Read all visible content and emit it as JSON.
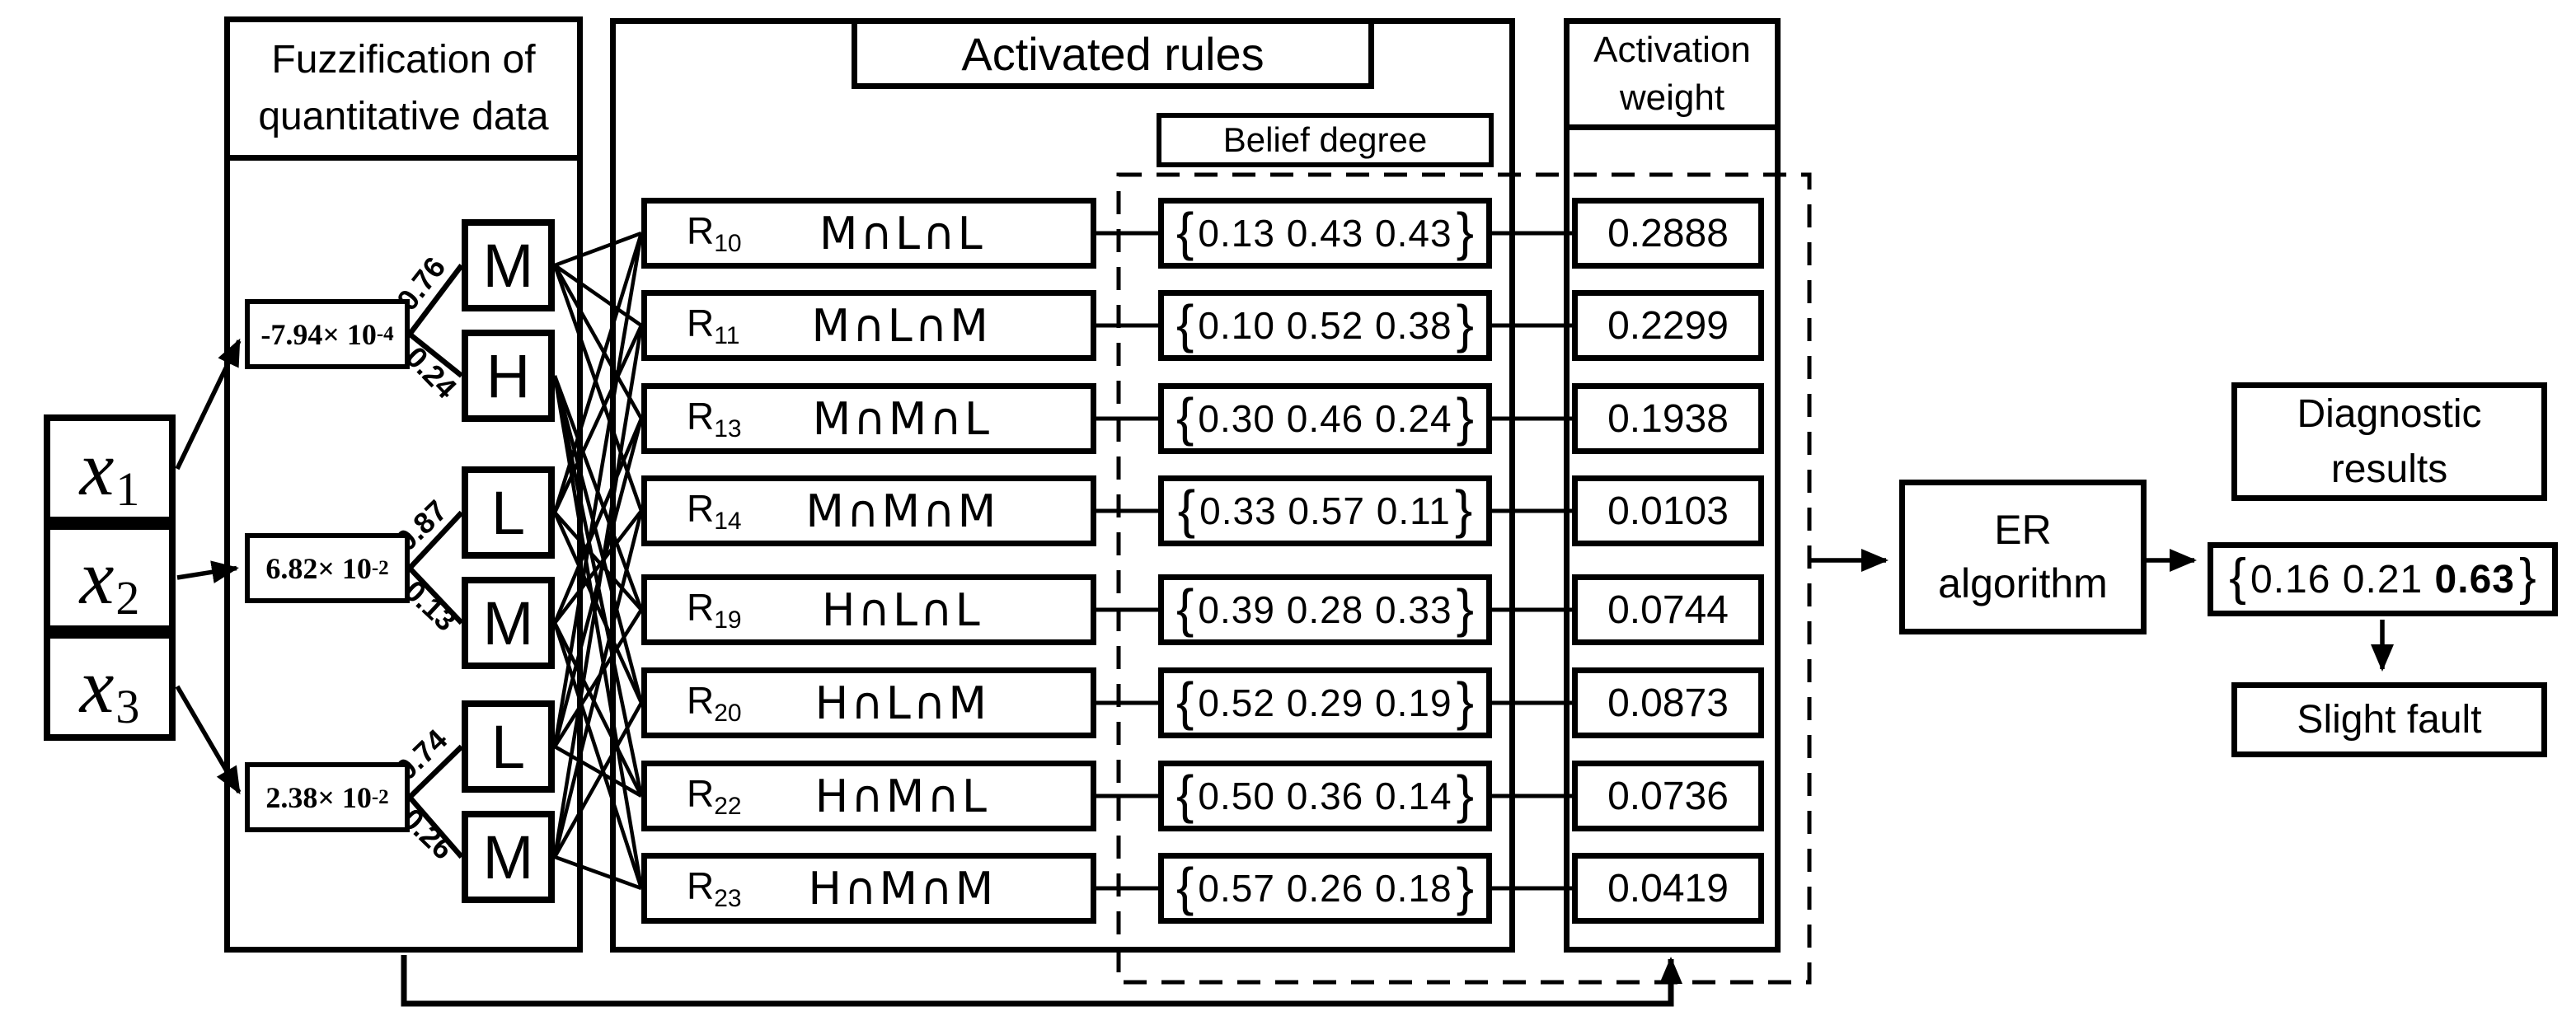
{
  "diagram": {
    "inputs": [
      {
        "base": "x",
        "sub": "1"
      },
      {
        "base": "x",
        "sub": "2"
      },
      {
        "base": "x",
        "sub": "3"
      }
    ],
    "fuzzification": {
      "title_lines": [
        "Fuzzification of",
        "quantitative data"
      ],
      "values": [
        {
          "text": "-7.94× 10",
          "sup": "-4"
        },
        {
          "text": "6.82× 10",
          "sup": "-2"
        },
        {
          "text": "2.38× 10",
          "sup": "-2"
        }
      ],
      "membership": [
        "M",
        "H",
        "L",
        "M",
        "L",
        "M"
      ],
      "edge_weights": [
        "0.76",
        "0.24",
        "0.87",
        "0.13",
        "0.74",
        "0.26"
      ]
    },
    "activated_rules": {
      "title": "Activated rules",
      "belief_title": "Belief degree",
      "activation_title_lines": [
        "Activation",
        "weight"
      ],
      "rules": [
        {
          "id": "R",
          "sub": "10",
          "antecedent": "M∩L∩L",
          "belief": [
            "0.13",
            "0.43",
            "0.43"
          ],
          "weight": "0.2888"
        },
        {
          "id": "R",
          "sub": "11",
          "antecedent": "M∩L∩M",
          "belief": [
            "0.10",
            "0.52",
            "0.38"
          ],
          "weight": "0.2299"
        },
        {
          "id": "R",
          "sub": "13",
          "antecedent": "M∩M∩L",
          "belief": [
            "0.30",
            "0.46",
            "0.24"
          ],
          "weight": "0.1938"
        },
        {
          "id": "R",
          "sub": "14",
          "antecedent": "M∩M∩M",
          "belief": [
            "0.33",
            "0.57",
            "0.11"
          ],
          "weight": "0.0103"
        },
        {
          "id": "R",
          "sub": "19",
          "antecedent": "H∩L∩L",
          "belief": [
            "0.39",
            "0.28",
            "0.33"
          ],
          "weight": "0.0744"
        },
        {
          "id": "R",
          "sub": "20",
          "antecedent": "H∩L∩M",
          "belief": [
            "0.52",
            "0.29",
            "0.19"
          ],
          "weight": "0.0873"
        },
        {
          "id": "R",
          "sub": "22",
          "antecedent": "H∩M∩L",
          "belief": [
            "0.50",
            "0.36",
            "0.14"
          ],
          "weight": "0.0736"
        },
        {
          "id": "R",
          "sub": "23",
          "antecedent": "H∩M∩M",
          "belief": [
            "0.57",
            "0.26",
            "0.18"
          ],
          "weight": "0.0419"
        }
      ]
    },
    "er": {
      "label_lines": [
        "ER",
        "algorithm"
      ]
    },
    "results": {
      "title_lines": [
        "Diagnostic",
        "results"
      ],
      "belief": [
        "0.16",
        "0.21",
        "0.63"
      ],
      "bold_index": 2,
      "conclusion": "Slight fault"
    }
  }
}
